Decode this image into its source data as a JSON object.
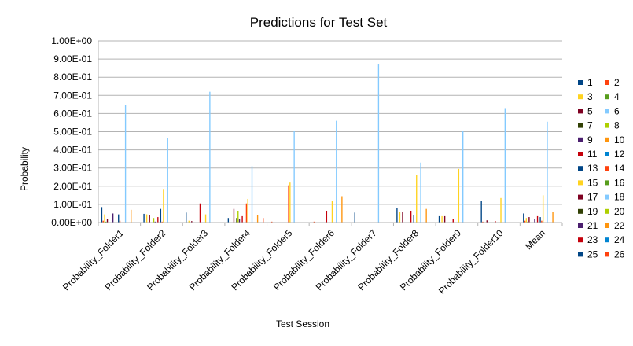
{
  "chart_data": {
    "type": "bar",
    "title": "Predictions for Test Set",
    "xlabel": "Test Session",
    "ylabel": "Probability",
    "ylim": [
      0,
      1
    ],
    "yticks": [
      "0.00E+00",
      "1.00E-01",
      "2.00E-01",
      "3.00E-01",
      "4.00E-01",
      "5.00E-01",
      "6.00E-01",
      "7.00E-01",
      "8.00E-01",
      "9.00E-01",
      "1.00E+00"
    ],
    "grid": true,
    "legend_position": "right",
    "categories": [
      "Probability_Folder1",
      "Probability_Folder2",
      "Probability_Folder3",
      "Probability_Folder4",
      "Probability_Folder5",
      "Probability_Folder6",
      "Probability_Folder7",
      "Probability_Folder8",
      "Probability_Folder9",
      "Probability_Folder10",
      "Mean"
    ],
    "series": [
      {
        "name": "1",
        "color": "#004586",
        "values": [
          0.085,
          0.048,
          0.055,
          0.025,
          0.0,
          0.0,
          0.055,
          0.078,
          0.035,
          0.12,
          0.05
        ]
      },
      {
        "name": "2",
        "color": "#ff420e",
        "values": [
          0.01,
          0.0,
          0.0,
          0.0,
          0.005,
          0.005,
          0.0,
          0.0,
          0.0,
          0.005,
          0.01
        ]
      },
      {
        "name": "3",
        "color": "#ffd320",
        "values": [
          0.045,
          0.045,
          0.01,
          0.0,
          0.0,
          0.0,
          0.0,
          0.06,
          0.035,
          0.0,
          0.025
        ]
      },
      {
        "name": "4",
        "color": "#579d1c",
        "values": [
          0.005,
          0.0,
          0.0,
          0.0,
          0.0,
          0.0,
          0.0,
          0.0,
          0.0,
          0.0,
          0.005
        ]
      },
      {
        "name": "5",
        "color": "#7e0021",
        "values": [
          0.018,
          0.04,
          0.008,
          0.075,
          0.0,
          0.0,
          0.0,
          0.06,
          0.035,
          0.012,
          0.03
        ]
      },
      {
        "name": "6",
        "color": "#83caff",
        "values": [
          0.0,
          0.0,
          0.0,
          0.0,
          0.0,
          0.0,
          0.0,
          0.0,
          0.0,
          0.0,
          0.0
        ]
      },
      {
        "name": "7",
        "color": "#314004",
        "values": [
          0.0,
          0.0,
          0.0,
          0.025,
          0.0,
          0.0,
          0.0,
          0.0,
          0.0,
          0.0,
          0.0
        ]
      },
      {
        "name": "8",
        "color": "#aecf00",
        "values": [
          0.0,
          0.025,
          0.0,
          0.065,
          0.0,
          0.0,
          0.0,
          0.0,
          0.0,
          0.0,
          0.0
        ]
      },
      {
        "name": "9",
        "color": "#4b1f6f",
        "values": [
          0.05,
          0.005,
          0.0,
          0.02,
          0.0,
          0.0,
          0.0,
          0.0,
          0.0,
          0.0,
          0.02
        ]
      },
      {
        "name": "10",
        "color": "#ff950e",
        "values": [
          0.0,
          0.0,
          0.0,
          0.0,
          0.0,
          0.0,
          0.0,
          0.0,
          0.0,
          0.0,
          0.0
        ]
      },
      {
        "name": "11",
        "color": "#c5000b",
        "values": [
          0.0,
          0.03,
          0.105,
          0.035,
          0.0,
          0.065,
          0.0,
          0.065,
          0.02,
          0.008,
          0.035
        ]
      },
      {
        "name": "12",
        "color": "#0084d1",
        "values": [
          0.0,
          0.0,
          0.0,
          0.0,
          0.0,
          0.0,
          0.0,
          0.0,
          0.0,
          0.0,
          0.0
        ]
      },
      {
        "name": "13",
        "color": "#004586",
        "values": [
          0.045,
          0.075,
          0.0,
          0.0,
          0.0,
          0.0,
          0.0,
          0.04,
          0.0,
          0.0,
          0.03
        ]
      },
      {
        "name": "14",
        "color": "#ff420e",
        "values": [
          0.01,
          0.005,
          0.0,
          0.105,
          0.205,
          0.0,
          0.0,
          0.0,
          0.0,
          0.0,
          0.01
        ]
      },
      {
        "name": "15",
        "color": "#ffd320",
        "values": [
          0.0,
          0.0,
          0.045,
          0.13,
          0.22,
          0.0,
          0.0,
          0.0,
          0.0,
          0.0,
          0.0
        ]
      },
      {
        "name": "16",
        "color": "#579d1c",
        "values": [
          0.0,
          0.0,
          0.0,
          0.0,
          0.0,
          0.0,
          0.0,
          0.0,
          0.0,
          0.0,
          0.0
        ]
      },
      {
        "name": "17",
        "color": "#7e0021",
        "values": [
          0.0,
          0.0,
          0.0,
          0.0,
          0.0,
          0.0,
          0.0,
          0.0,
          0.0,
          0.0,
          0.0
        ]
      },
      {
        "name": "18",
        "color": "#83caff",
        "values": [
          0.0,
          0.0,
          0.0,
          0.0,
          0.0,
          0.0,
          0.0,
          0.0,
          0.0,
          0.0,
          0.0
        ]
      },
      {
        "name": "19",
        "color": "#314004",
        "values": [
          0.0,
          0.0,
          0.0,
          0.0,
          0.0,
          0.0,
          0.0,
          0.0,
          0.0,
          0.0,
          0.0
        ]
      },
      {
        "name": "20",
        "color": "#aecf00",
        "values": [
          0.0,
          0.0,
          0.0,
          0.0,
          0.0,
          0.0,
          0.0,
          0.0,
          0.0,
          0.0,
          0.0
        ]
      },
      {
        "name": "21",
        "color": "#4b1f6f",
        "values": [
          0.0,
          0.0,
          0.0,
          0.0,
          0.0,
          0.0,
          0.0,
          0.0,
          0.0,
          0.0,
          0.0
        ]
      },
      {
        "name": "22",
        "color": "#ff950e",
        "values": [
          0.07,
          0.0,
          0.0,
          0.04,
          0.0,
          0.145,
          0.0,
          0.075,
          0.0,
          0.0,
          0.06
        ]
      },
      {
        "name": "23",
        "color": "#c5000b",
        "values": [
          0.0,
          0.0,
          0.0,
          0.0,
          0.0,
          0.0,
          0.0,
          0.0,
          0.0,
          0.0,
          0.0
        ]
      },
      {
        "name": "24",
        "color": "#0084d1",
        "values": [
          0.0,
          0.0,
          0.0,
          0.0,
          0.0,
          0.0,
          0.0,
          0.0,
          0.0,
          0.0,
          0.0
        ]
      },
      {
        "name": "25",
        "color": "#004586",
        "values": [
          0.0,
          0.0,
          0.0,
          0.0,
          0.0,
          0.0,
          0.0,
          0.0,
          0.0,
          0.0,
          0.0
        ]
      },
      {
        "name": "26",
        "color": "#ff420e",
        "values": [
          0.0,
          0.0,
          0.0,
          0.025,
          0.0,
          0.0,
          0.0,
          0.0,
          0.0,
          0.0,
          0.0
        ]
      }
    ],
    "highlight_series": [
      {
        "name": "15",
        "color": "#ffd320",
        "values": [
          0.0,
          0.185,
          0.0,
          0.0,
          0.0,
          0.12,
          0.0,
          0.26,
          0.295,
          0.135,
          0.15
        ]
      },
      {
        "name": "18",
        "color": "#83caff",
        "values": [
          0.645,
          0.465,
          0.72,
          0.31,
          0.505,
          0.56,
          0.87,
          0.33,
          0.505,
          0.63,
          0.555
        ]
      }
    ]
  }
}
